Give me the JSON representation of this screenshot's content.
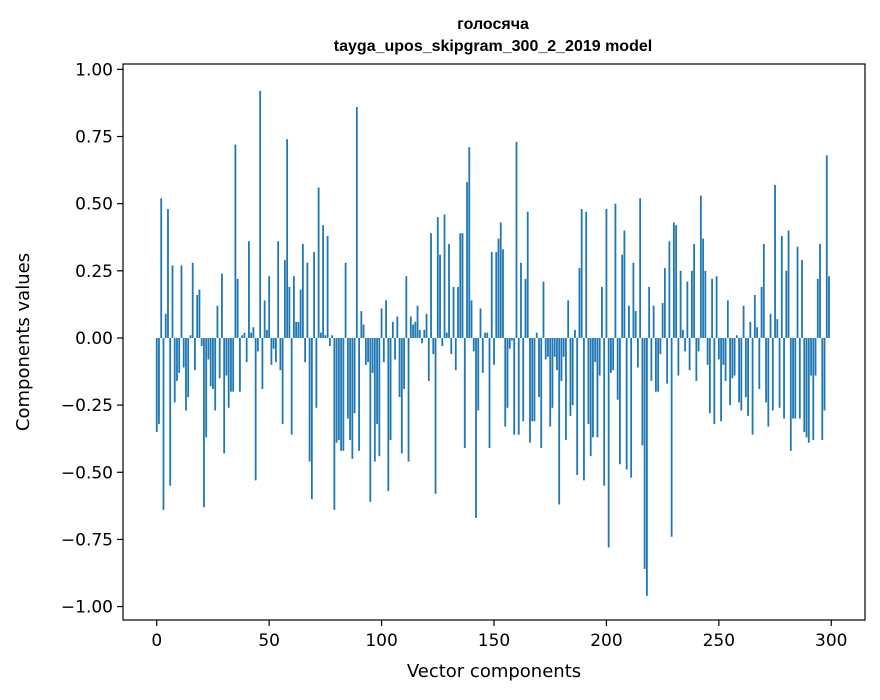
{
  "chart_data": {
    "type": "bar",
    "title": "голосяча",
    "subtitle": "tayga_upos_skipgram_300_2_2019 model",
    "xlabel": "Vector components",
    "ylabel": "Components values",
    "xlim": [
      -15,
      315
    ],
    "ylim": [
      -1.05,
      1.02
    ],
    "x_ticks": [
      0,
      50,
      100,
      150,
      200,
      250,
      300
    ],
    "x_tick_labels": [
      "0",
      "50",
      "100",
      "150",
      "200",
      "250",
      "300"
    ],
    "y_ticks": [
      1.0,
      0.75,
      0.5,
      0.25,
      0.0,
      -0.25,
      -0.5,
      -0.75,
      -1.0
    ],
    "y_tick_labels": [
      "1.00",
      "0.75",
      "0.50",
      "0.25",
      "0.00",
      "−0.25",
      "−0.50",
      "−0.75",
      "−1.00"
    ],
    "grid": false,
    "bar_color": "#1f77b4",
    "x": "0..299",
    "values": [
      -0.35,
      -0.32,
      0.52,
      -0.64,
      0.09,
      0.48,
      -0.55,
      0.27,
      -0.24,
      -0.16,
      -0.13,
      0.27,
      -0.11,
      -0.27,
      -0.22,
      0.01,
      0.28,
      -0.12,
      0.16,
      0.18,
      -0.03,
      -0.63,
      -0.37,
      -0.08,
      -0.18,
      -0.19,
      -0.27,
      0.12,
      -0.15,
      0.24,
      -0.43,
      -0.14,
      -0.26,
      -0.2,
      -0.2,
      0.72,
      0.22,
      -0.2,
      0.01,
      0.02,
      -0.09,
      0.36,
      0.02,
      0.04,
      -0.53,
      -0.05,
      0.92,
      -0.19,
      0.14,
      0.03,
      0.23,
      -0.1,
      -0.04,
      -0.09,
      0.36,
      -0.12,
      -0.32,
      0.29,
      0.74,
      0.19,
      -0.36,
      0.23,
      0.06,
      0.06,
      0.18,
      0.35,
      -0.09,
      0.28,
      -0.46,
      -0.6,
      0.32,
      -0.26,
      0.56,
      0.02,
      0.42,
      0.01,
      0.38,
      -0.03,
      0.01,
      -0.64,
      -0.39,
      -0.38,
      -0.42,
      -0.42,
      0.28,
      -0.3,
      -0.38,
      -0.45,
      -0.28,
      0.86,
      -0.42,
      0.1,
      0.05,
      -0.1,
      -0.09,
      -0.61,
      -0.13,
      -0.46,
      -0.32,
      -0.44,
      0.11,
      -0.09,
      0.14,
      -0.57,
      -0.38,
      0.06,
      -0.08,
      0.08,
      -0.22,
      -0.43,
      -0.19,
      0.23,
      -0.46,
      0.08,
      0.05,
      0.06,
      0.12,
      0.03,
      -0.02,
      0.03,
      0.09,
      -0.16,
      0.39,
      -0.06,
      -0.58,
      0.45,
      0.31,
      -0.03,
      0.46,
      0.02,
      0.35,
      -0.06,
      0.19,
      -0.12,
      0.19,
      0.39,
      0.39,
      -0.41,
      0.58,
      0.71,
      0.14,
      -0.05,
      -0.67,
      -0.27,
      0.11,
      -0.13,
      0.02,
      0.02,
      -0.41,
      0.32,
      -0.1,
      0.32,
      0.37,
      0.43,
      0.33,
      -0.33,
      -0.26,
      -0.04,
      -0.01,
      -0.36,
      0.73,
      -0.36,
      0.28,
      -0.31,
      0.22,
      0.47,
      -0.39,
      -0.31,
      -0.31,
      0.02,
      -0.22,
      -0.41,
      0.21,
      -0.08,
      -0.07,
      -0.33,
      -0.26,
      -0.07,
      -0.12,
      -0.62,
      -0.16,
      -0.07,
      -0.38,
      0.14,
      -0.29,
      -0.25,
      0.03,
      -0.51,
      0.26,
      0.48,
      -0.53,
      0.47,
      -0.32,
      -0.44,
      -0.37,
      -0.09,
      -0.37,
      -0.14,
      0.19,
      -0.55,
      0.48,
      -0.78,
      -0.13,
      -0.12,
      0.5,
      -0.23,
      -0.47,
      0.31,
      0.4,
      -0.49,
      0.12,
      -0.52,
      0.28,
      0.1,
      -0.11,
      0.52,
      -0.4,
      -0.86,
      -0.96,
      0.19,
      -0.16,
      0.12,
      -0.2,
      -0.2,
      -0.06,
      0.13,
      0.26,
      -0.17,
      0.36,
      -0.74,
      0.43,
      0.42,
      -0.14,
      0.25,
      0.03,
      -0.05,
      0.21,
      -0.12,
      0.25,
      0.35,
      -0.16,
      -0.05,
      0.53,
      0.37,
      0.25,
      -0.1,
      -0.28,
      0.22,
      -0.32,
      0.23,
      -0.08,
      -0.31,
      -0.1,
      -0.16,
      0.14,
      -0.25,
      -0.15,
      -0.14,
      0.01,
      -0.24,
      -0.27,
      0.12,
      -0.22,
      -0.29,
      0.06,
      -0.36,
      0.16,
      0.04,
      -0.19,
      0.19,
      0.35,
      -0.24,
      -0.33,
      0.09,
      -0.27,
      0.57,
      0.07,
      -0.26,
      0.38,
      -0.3,
      0.25,
      0.4,
      -0.42,
      -0.3,
      -0.3,
      0.34,
      -0.3,
      0.29,
      -0.35,
      -0.37,
      -0.39,
      -0.14,
      -0.38,
      -0.14,
      0.22,
      0.35,
      -0.38,
      -0.27,
      0.68,
      0.23
    ]
  }
}
